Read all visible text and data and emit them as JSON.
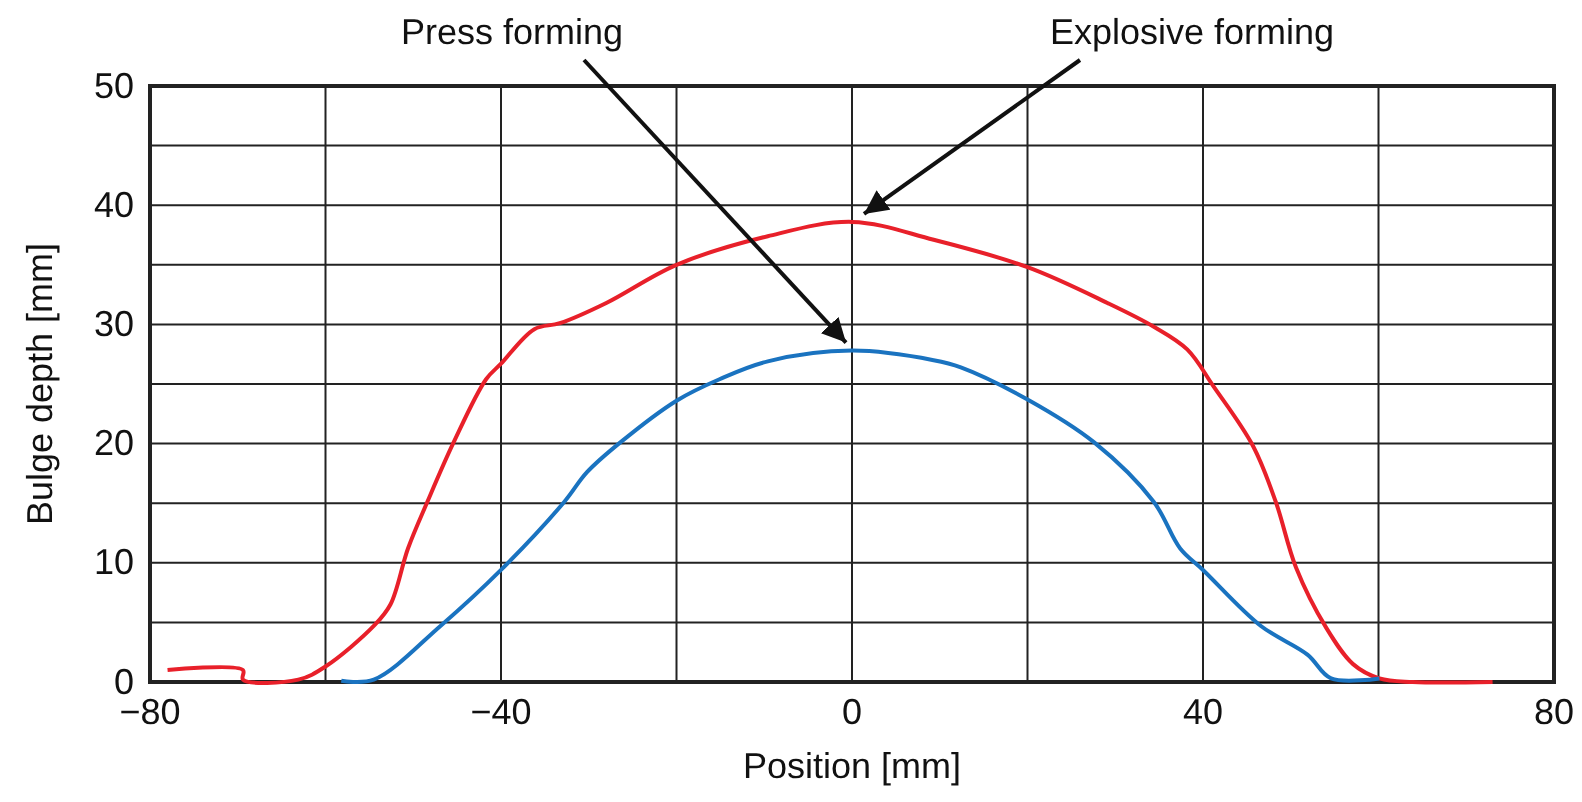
{
  "chart_data": {
    "type": "line",
    "xlabel": "Position [mm]",
    "ylabel": "Bulge depth [mm]",
    "xlim": [
      -80,
      80
    ],
    "ylim": [
      0,
      50
    ],
    "xticks": [
      {
        "value": -80,
        "label": "−80"
      },
      {
        "value": -60,
        "label": null
      },
      {
        "value": -40,
        "label": "−40"
      },
      {
        "value": -20,
        "label": null
      },
      0,
      {
        "value": 20,
        "label": null
      },
      40,
      {
        "value": 60,
        "label": null
      },
      80
    ],
    "yticks": [
      0,
      {
        "value": 5,
        "label": null
      },
      10,
      {
        "value": 15,
        "label": null
      },
      20,
      {
        "value": 25,
        "label": null
      },
      30,
      {
        "value": 35,
        "label": null
      },
      40,
      {
        "value": 45,
        "label": null
      },
      50
    ],
    "grid": true,
    "marker": "none",
    "line_style": "solid",
    "series": [
      {
        "color": "#e8202a",
        "x": [
          -78,
          -69.4,
          -69.4,
          -63.1,
          -60,
          -54.5,
          -52.6,
          -50.6,
          -48.4,
          -45.4,
          -41.7,
          -40,
          -36.2,
          -33.3,
          -28,
          -20,
          -9.6,
          0,
          9.3,
          20,
          29.1,
          34.4,
          38.2,
          41.2,
          45.7,
          48.3,
          50.6,
          54,
          57.1,
          60.1,
          63.9,
          73
        ],
        "values": [
          1,
          1,
          0.2,
          0.2,
          1.3,
          4.7,
          6.5,
          11.2,
          15.1,
          20.1,
          25.4,
          26.7,
          29.6,
          30.1,
          31.8,
          35,
          37.4,
          38.6,
          37.1,
          34.8,
          31.8,
          29.8,
          27.9,
          24.8,
          19.8,
          15.1,
          9.6,
          4.6,
          1.5,
          0.3,
          0,
          0
        ]
      },
      {
        "color": "#1a73c0",
        "x": [
          -58.2,
          -54.5,
          -46.9,
          -40,
          -32.8,
          -30.2,
          -26.4,
          -20,
          -15.1,
          -9.6,
          0,
          9.3,
          12.4,
          20,
          27.6,
          34.4,
          37.4,
          40,
          46.6,
          51.9,
          54.6,
          60.1
        ],
        "values": [
          0.1,
          0.2,
          4.7,
          9.4,
          15.1,
          17.6,
          20.1,
          23.6,
          25.4,
          26.9,
          27.8,
          27,
          26.4,
          23.7,
          20.1,
          15.1,
          11.2,
          9.4,
          4.7,
          2.3,
          0.3,
          0.3
        ]
      }
    ],
    "annotations": [
      {
        "text": "Press forming",
        "x": 0,
        "y": 27.8
      },
      {
        "text": "Explosive forming",
        "x": 0,
        "y": 38.6
      }
    ]
  }
}
